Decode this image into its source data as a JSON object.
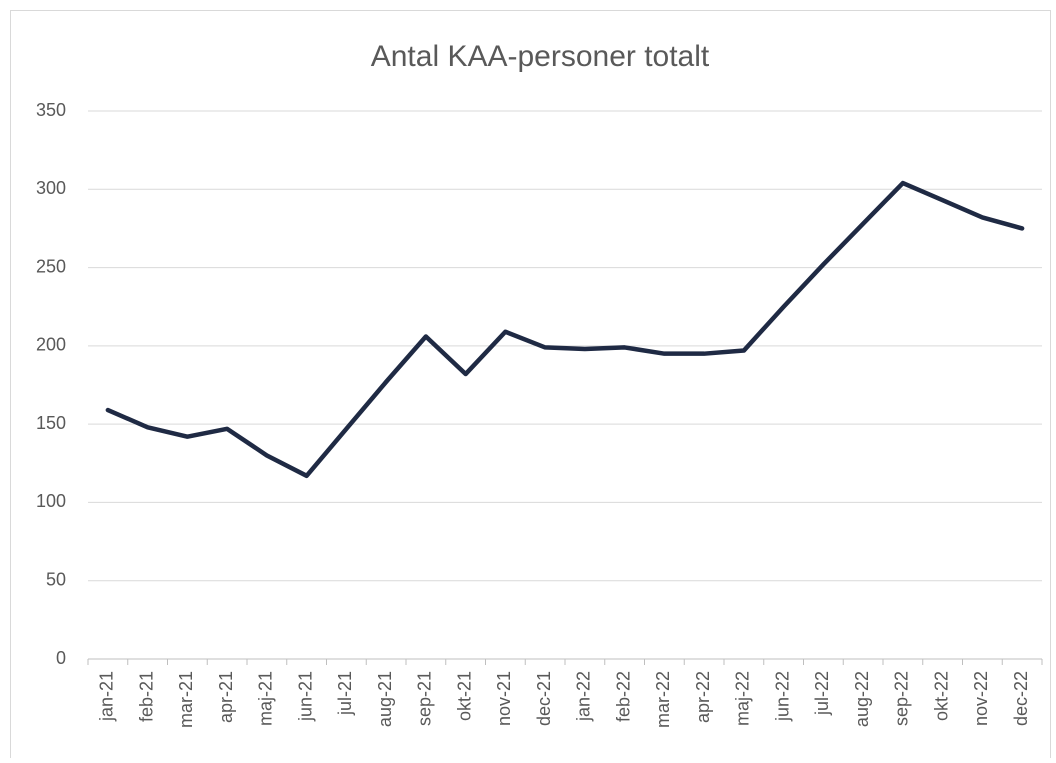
{
  "chart_data": {
    "type": "line",
    "title": "Antal KAA-personer totalt",
    "categories": [
      "jan-21",
      "feb-21",
      "mar-21",
      "apr-21",
      "maj-21",
      "jun-21",
      "jul-21",
      "aug-21",
      "sep-21",
      "okt-21",
      "nov-21",
      "dec-21",
      "jan-22",
      "feb-22",
      "mar-22",
      "apr-22",
      "maj-22",
      "jun-22",
      "jul-22",
      "aug-22",
      "sep-22",
      "okt-22",
      "nov-22",
      "dec-22"
    ],
    "series": [
      {
        "name": "Antal KAA-personer totalt",
        "color": "#1f2a44",
        "values": [
          159,
          148,
          142,
          147,
          130,
          117,
          147,
          177,
          206,
          182,
          209,
          199,
          198,
          199,
          195,
          195,
          197,
          225,
          252,
          278,
          304,
          293,
          282,
          275
        ]
      }
    ],
    "ylim": [
      0,
      350
    ],
    "yticks": [
      0,
      50,
      100,
      150,
      200,
      250,
      300,
      350
    ],
    "grid": true
  }
}
